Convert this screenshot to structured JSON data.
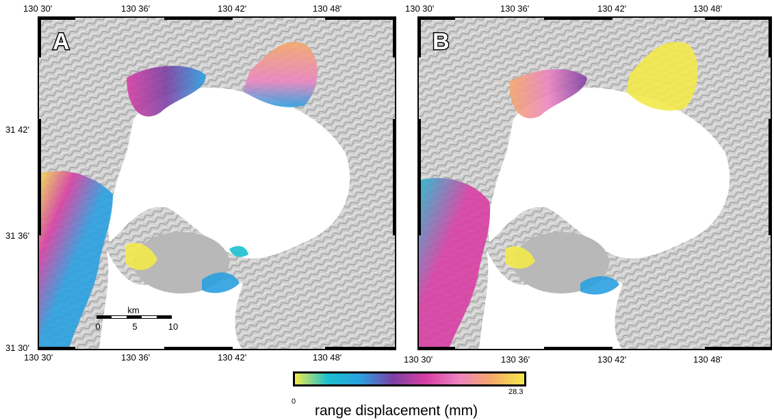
{
  "panels": [
    {
      "letter": "A",
      "top_labels": [
        "130 30'",
        "130 36'",
        "130 42'",
        "130 48'"
      ],
      "bottom_labels": [
        "130 30'",
        "130 36'",
        "130 42'",
        "130 48'"
      ],
      "left_labels": [
        "31 42'",
        "31 36'",
        "31 30'"
      ]
    },
    {
      "letter": "B",
      "top_labels": [
        "130 30'",
        "130 36'",
        "130 42'",
        "130 48'"
      ],
      "bottom_labels": [
        "130 30'",
        "130 36'",
        "130 42'",
        "130 48'"
      ]
    }
  ],
  "scale_bar": {
    "unit": "km",
    "ticks": [
      "0",
      "5",
      "10"
    ]
  },
  "colorbar": {
    "title": "range displacement (mm)",
    "min_label": "0",
    "max_label": "28.3",
    "min_value": 0,
    "max_value": 28.3,
    "colors": [
      "#f3e94a",
      "#1bbfd0",
      "#2aa0e0",
      "#7d3fa3",
      "#d83fa4",
      "#ec84c0",
      "#f5a96a",
      "#f3e94a"
    ]
  },
  "colors": {
    "terrain": "#c9c9c9",
    "water": "#ffffff",
    "frame": "#000000"
  },
  "icons": [
    "north-label-a",
    "north-label-b"
  ]
}
